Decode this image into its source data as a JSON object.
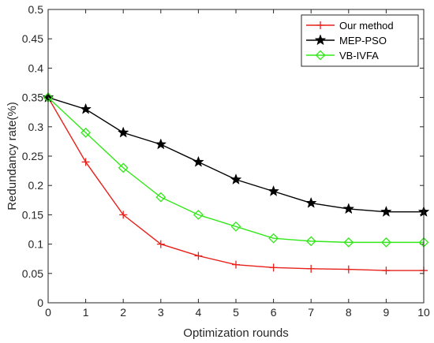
{
  "chart_data": {
    "type": "line",
    "xlabel": "Optimization rounds",
    "ylabel": "Redundancy rate(%)",
    "xlim": [
      0,
      10
    ],
    "ylim": [
      0,
      0.5
    ],
    "xticks": [
      "0",
      "1",
      "2",
      "3",
      "4",
      "5",
      "6",
      "7",
      "8",
      "9",
      "10"
    ],
    "yticks": [
      "0",
      "0.05",
      "0.1",
      "0.15",
      "0.2",
      "0.25",
      "0.3",
      "0.35",
      "0.4",
      "0.45",
      "0.5"
    ],
    "grid": false,
    "legend_position": "top-right",
    "x": [
      0,
      1,
      2,
      3,
      4,
      5,
      6,
      7,
      8,
      9,
      10
    ],
    "series": [
      {
        "name": "Our method",
        "color": "#e8211a",
        "marker": "plus",
        "values": [
          0.35,
          0.24,
          0.15,
          0.1,
          0.08,
          0.065,
          0.06,
          0.058,
          0.057,
          0.055,
          0.055
        ]
      },
      {
        "name": "MEP-PSO",
        "color": "#000000",
        "marker": "star",
        "values": [
          0.35,
          0.33,
          0.29,
          0.27,
          0.24,
          0.21,
          0.19,
          0.17,
          0.16,
          0.155,
          0.155
        ]
      },
      {
        "name": "VB-IVFA",
        "color": "#33e81a",
        "marker": "diamond",
        "values": [
          0.35,
          0.29,
          0.23,
          0.18,
          0.15,
          0.13,
          0.11,
          0.105,
          0.103,
          0.103,
          0.103
        ]
      }
    ]
  }
}
